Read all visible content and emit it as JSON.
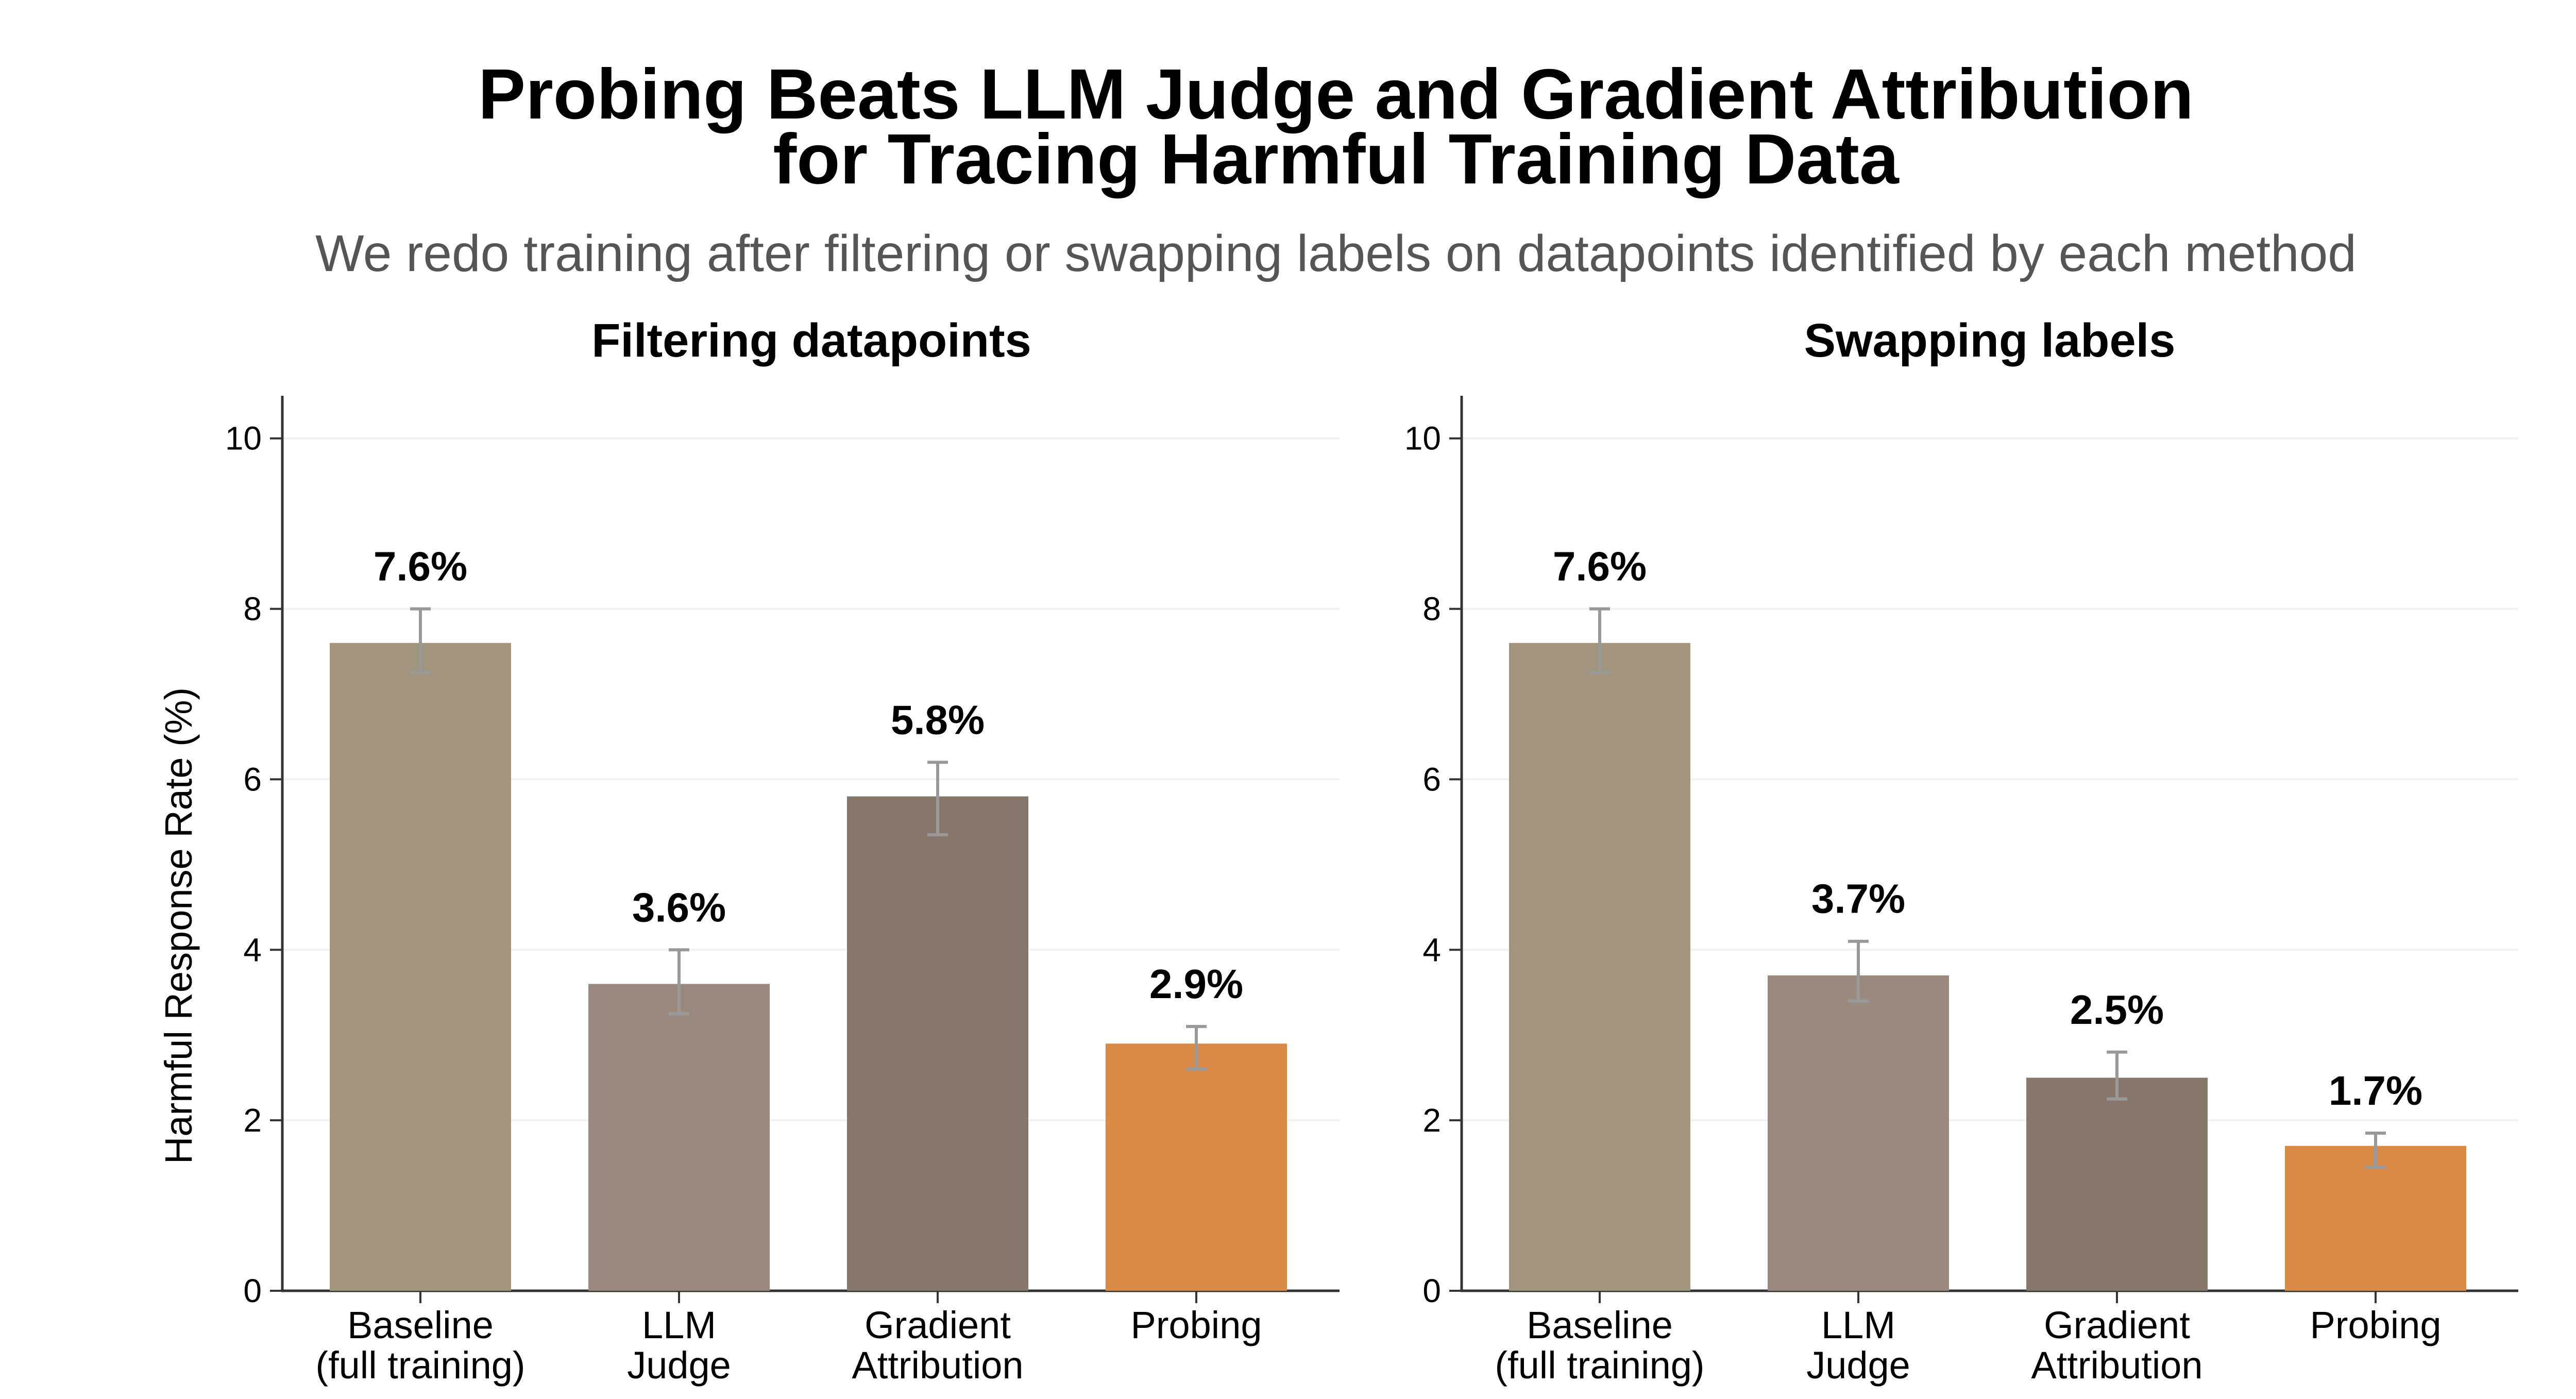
{
  "title_line1": "Probing Beats LLM Judge and Gradient Attribution",
  "title_line2": "for Tracing Harmful Training Data",
  "subtitle": "We redo training after filtering or swapping labels on datapoints identified by each method",
  "colors": {
    "baseline": "#a0947e",
    "llm_judge": "#9a897d",
    "gradient_attribution": "#85786a",
    "probing": "#d98a48",
    "error_bar": "#999999",
    "grid": "#f2f2f2",
    "axis": "#333333"
  },
  "chart_data": [
    {
      "type": "bar",
      "title": "Filtering datapoints",
      "ylabel": "Harmful Response Rate (%)",
      "ylim": [
        0,
        10.5
      ],
      "yticks": [
        "0",
        "2",
        "4",
        "6",
        "8",
        "10"
      ],
      "categories": [
        "Baseline\n(full training)",
        "LLM\nJudge",
        "Gradient\nAttribution",
        "Probing"
      ],
      "values": [
        7.6,
        3.6,
        5.8,
        2.9
      ],
      "value_labels": [
        "7.6%",
        "3.6%",
        "5.8%",
        "2.9%"
      ],
      "error_low": [
        7.25,
        3.25,
        5.35,
        2.6
      ],
      "error_high": [
        8.0,
        4.0,
        6.2,
        3.1
      ],
      "grid": "horizontal"
    },
    {
      "type": "bar",
      "title": "Swapping labels",
      "ylabel": "",
      "ylim": [
        0,
        10.5
      ],
      "yticks": [
        "0",
        "2",
        "4",
        "6",
        "8",
        "10"
      ],
      "categories": [
        "Baseline\n(full training)",
        "LLM\nJudge",
        "Gradient\nAttribution",
        "Probing"
      ],
      "values": [
        7.6,
        3.7,
        2.5,
        1.7
      ],
      "value_labels": [
        "7.6%",
        "3.7%",
        "2.5%",
        "1.7%"
      ],
      "error_low": [
        7.25,
        3.4,
        2.25,
        1.45
      ],
      "error_high": [
        8.0,
        4.1,
        2.8,
        1.85
      ],
      "grid": "horizontal"
    }
  ]
}
